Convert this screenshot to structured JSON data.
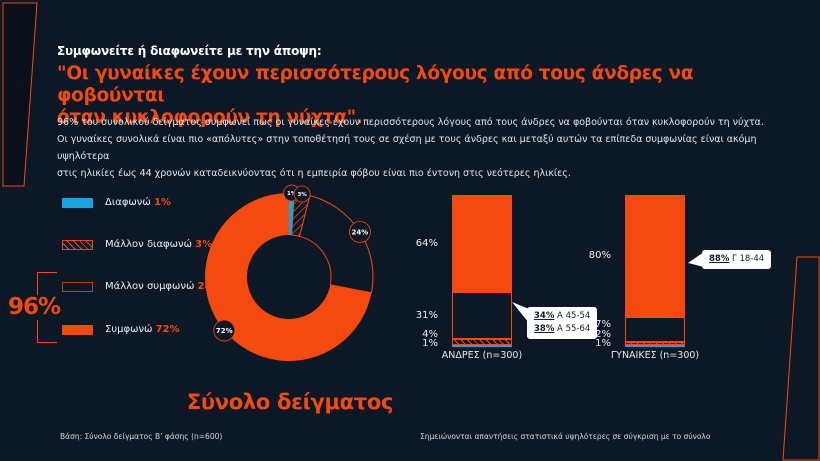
{
  "colors": {
    "background": "#0D1826",
    "orange": "#F4490F",
    "blue": "#18A4E0",
    "white": "#FFFFFF",
    "callout_text": "#0E1B2B"
  },
  "header": {
    "kicker": "Συμφωνείτε ή διαφωνείτε με την άποψη:",
    "title_line1": "\"Οι γυναίκες έχουν περισσότερους λόγους από τους άνδρες να φοβούνται",
    "title_line2": "όταν κυκλοφορούν τη νύχτα\".",
    "body_line1": "96% του συνολικού δείγματος συμφωνεί πως οι γυναίκες έχουν περισσότερους λόγους από τους άνδρες να φοβούνται όταν κυκλοφορούν τη νύχτα.",
    "body_line2": "Οι γυναίκες συνολικά είναι πιο «απόλυτες» στην τοποθέτησή τους σε σχέση με τους άνδρες και μεταξύ αυτών τα επίπεδα συμφωνίας είναι ακόμη υψηλότερα",
    "body_line3": "στις ηλικίες έως 44 χρονών καταδεικνύοντας ότι η εμπειρία φόβου είναι πιο έντονη στις νεότερες ηλικίες."
  },
  "legend": {
    "items": [
      {
        "label": "Διαφωνώ",
        "value": "1%",
        "style": "solid-blue"
      },
      {
        "label": "Μάλλον διαφωνώ",
        "value": "3%",
        "style": "hatch"
      },
      {
        "label": "Μάλλον συμφωνώ",
        "value": "24%",
        "style": "outline"
      },
      {
        "label": "Συμφωνώ",
        "value": "72%",
        "style": "solid-orange"
      }
    ],
    "agree_total": "96%"
  },
  "callouts": [
    {
      "lines": [
        {
          "bold": "34%",
          "rest": " Α 45-54"
        },
        {
          "bold": "38%",
          "rest": " Α 55-64"
        }
      ]
    },
    {
      "lines": [
        {
          "bold": "88%",
          "rest": " Γ 18-44"
        }
      ]
    }
  ],
  "footer": {
    "left": "Βάση: Σύνολο δείγματος Β’ φάσης (n=600)",
    "right": "Σημειώνονται απαντήσεις στατιστικά υψηλότερες σε σύγκριση με το σύνολο"
  },
  "chart_data": [
    {
      "type": "pie",
      "subtype": "donut",
      "title": "Σύνολο δείγματος",
      "categories": [
        "Διαφωνώ",
        "Μάλλον διαφωνώ",
        "Μάλλον συμφωνώ",
        "Συμφωνώ"
      ],
      "values": [
        1,
        3,
        24,
        72
      ],
      "slice_styles": [
        "solid-blue",
        "hatch",
        "outline",
        "solid-orange"
      ],
      "start_angle_deg": 0,
      "clockwise": true,
      "data_labels": [
        "1%",
        "3%",
        "24%",
        "72%"
      ],
      "agree_total_annotation": "96%"
    },
    {
      "type": "bar",
      "subtype": "stacked-100-percent",
      "categories": [
        "ΑΝΔΡΕΣ (n=300)",
        "ΓΥΝΑΙΚΕΣ (n=300)"
      ],
      "series": [
        {
          "name": "Συμφωνώ",
          "style": "solid-orange",
          "values": [
            64,
            80
          ]
        },
        {
          "name": "Μάλλον συμφωνώ",
          "style": "outline",
          "values": [
            31,
            17
          ]
        },
        {
          "name": "Μάλλον διαφωνώ",
          "style": "hatch",
          "values": [
            4,
            2
          ]
        },
        {
          "name": "Διαφωνώ",
          "style": "solid-blue",
          "values": [
            1,
            1
          ]
        }
      ],
      "annotations": [
        "34% Α 45-54",
        "38% Α 55-64",
        "88% Γ 18-44"
      ],
      "legend_position": "left",
      "grid": false
    }
  ]
}
